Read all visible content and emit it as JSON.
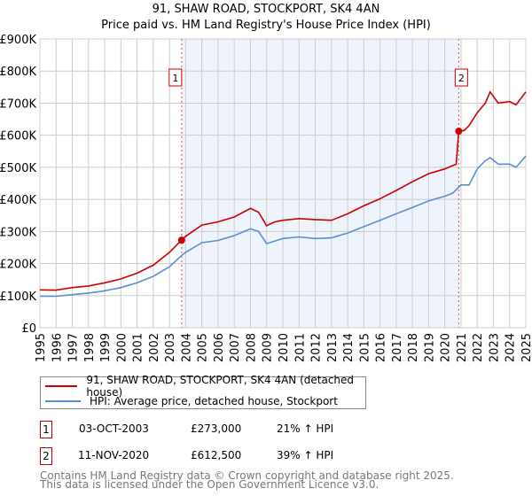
{
  "chart_data": {
    "type": "line",
    "title": "91, SHAW ROAD, STOCKPORT, SK4 4AN",
    "subtitle": "Price paid vs. HM Land Registry's House Price Index (HPI)",
    "xlim": [
      1995,
      2025
    ],
    "ylim": [
      0,
      900000
    ],
    "x_ticks": [
      "1995",
      "1996",
      "1997",
      "1998",
      "1999",
      "2000",
      "2001",
      "2002",
      "2003",
      "2004",
      "2005",
      "2006",
      "2007",
      "2008",
      "2009",
      "2010",
      "2011",
      "2012",
      "2013",
      "2014",
      "2015",
      "2016",
      "2017",
      "2018",
      "2019",
      "2020",
      "2021",
      "2022",
      "2023",
      "2024",
      "2025"
    ],
    "y_ticks": [
      {
        "v": 0,
        "label": "£0"
      },
      {
        "v": 100000,
        "label": "£100K"
      },
      {
        "v": 200000,
        "label": "£200K"
      },
      {
        "v": 300000,
        "label": "£300K"
      },
      {
        "v": 400000,
        "label": "£400K"
      },
      {
        "v": 500000,
        "label": "£500K"
      },
      {
        "v": 600000,
        "label": "£600K"
      },
      {
        "v": 700000,
        "label": "£700K"
      },
      {
        "v": 800000,
        "label": "£800K"
      },
      {
        "v": 900000,
        "label": "£900K"
      }
    ],
    "grid": true,
    "shaded_range": [
      2003.75,
      2020.86
    ],
    "series": [
      {
        "name": "91, SHAW ROAD, STOCKPORT, SK4 4AN (detached house)",
        "color": "#cc0000",
        "x": [
          1995,
          1996,
          1997,
          1998,
          1999,
          2000,
          2001,
          2002,
          2003,
          2003.75,
          2004,
          2005,
          2006,
          2007,
          2008,
          2008.5,
          2009,
          2009.5,
          2010,
          2011,
          2012,
          2013,
          2014,
          2015,
          2016,
          2017,
          2018,
          2019,
          2020,
          2020.7,
          2020.86,
          2021.2,
          2021.5,
          2022,
          2022.5,
          2022.8,
          2023.3,
          2024,
          2024.4,
          2025
        ],
        "values": [
          118000,
          117000,
          125000,
          130000,
          140000,
          152000,
          170000,
          195000,
          235000,
          273000,
          285000,
          320000,
          330000,
          345000,
          372000,
          360000,
          318000,
          330000,
          335000,
          340000,
          337000,
          335000,
          355000,
          380000,
          402000,
          428000,
          455000,
          480000,
          495000,
          510000,
          612500,
          615000,
          630000,
          670000,
          700000,
          735000,
          700000,
          705000,
          695000,
          735000
        ]
      },
      {
        "name": "HPI: Average price, detached house, Stockport",
        "color": "#5b8fd4",
        "x": [
          1995,
          1996,
          1997,
          1998,
          1999,
          2000,
          2001,
          2002,
          2003,
          2003.75,
          2004,
          2005,
          2006,
          2007,
          2008,
          2008.5,
          2009,
          2010,
          2011,
          2012,
          2013,
          2014,
          2015,
          2016,
          2017,
          2018,
          2019,
          2020,
          2020.5,
          2021,
          2021.5,
          2022,
          2022.5,
          2022.8,
          2023.3,
          2024,
          2024.4,
          2025
        ],
        "values": [
          98000,
          98000,
          103000,
          108000,
          115000,
          125000,
          140000,
          160000,
          190000,
          225000,
          235000,
          265000,
          272000,
          287000,
          308000,
          300000,
          262000,
          278000,
          283000,
          278000,
          280000,
          295000,
          315000,
          335000,
          355000,
          375000,
          395000,
          410000,
          420000,
          445000,
          445000,
          495000,
          520000,
          530000,
          510000,
          510000,
          500000,
          535000
        ]
      }
    ],
    "annotations": [
      {
        "label": "1",
        "x": 2003.75,
        "value": 273000
      },
      {
        "label": "2",
        "x": 2020.86,
        "value": 612500
      }
    ]
  },
  "legend": {
    "red": "91, SHAW ROAD, STOCKPORT, SK4 4AN (detached house)",
    "blue": "HPI: Average price, detached house, Stockport"
  },
  "transactions": [
    {
      "num": "1",
      "date": "03-OCT-2003",
      "price": "£273,000",
      "hpi": "21% ↑ HPI"
    },
    {
      "num": "2",
      "date": "11-NOV-2020",
      "price": "£612,500",
      "hpi": "39% ↑ HPI"
    }
  ],
  "footer": {
    "line1": "Contains HM Land Registry data © Crown copyright and database right 2025.",
    "line2": "This data is licensed under the Open Government Licence v3.0."
  }
}
